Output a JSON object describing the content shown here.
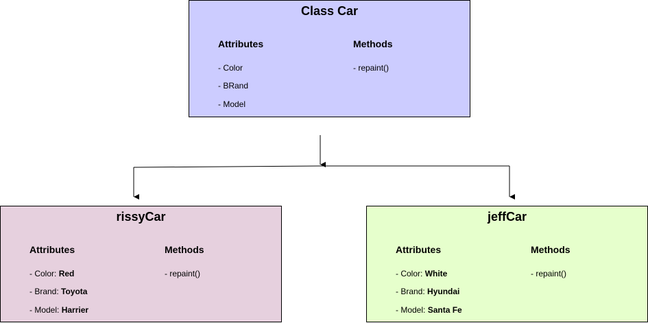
{
  "class_car": {
    "title": "Class Car",
    "attributes_header": "Attributes",
    "methods_header": "Methods",
    "attributes": [
      "- Color",
      "- BRand",
      "- Model"
    ],
    "methods": [
      "- repaint()"
    ],
    "fill": "#ccccff"
  },
  "rissy_car": {
    "title": "rissyCar",
    "attributes_header": "Attributes",
    "methods_header": "Methods",
    "attributes": [
      {
        "label": "- Color: ",
        "value": "Red"
      },
      {
        "label": "- Brand: ",
        "value": "Toyota"
      },
      {
        "label": "- Model: ",
        "value": "Harrier"
      }
    ],
    "methods": [
      "- repaint()"
    ],
    "fill": "#e6d0de"
  },
  "jeff_car": {
    "title": "jeffCar",
    "attributes_header": "Attributes",
    "methods_header": "Methods",
    "attributes": [
      {
        "label": "- Color: ",
        "value": "White"
      },
      {
        "label": "- Brand: ",
        "value": "Hyundai"
      },
      {
        "label": "- Model: ",
        "value": "Santa Fe"
      }
    ],
    "methods": [
      "- repaint()"
    ],
    "fill": "#e6ffcc"
  }
}
